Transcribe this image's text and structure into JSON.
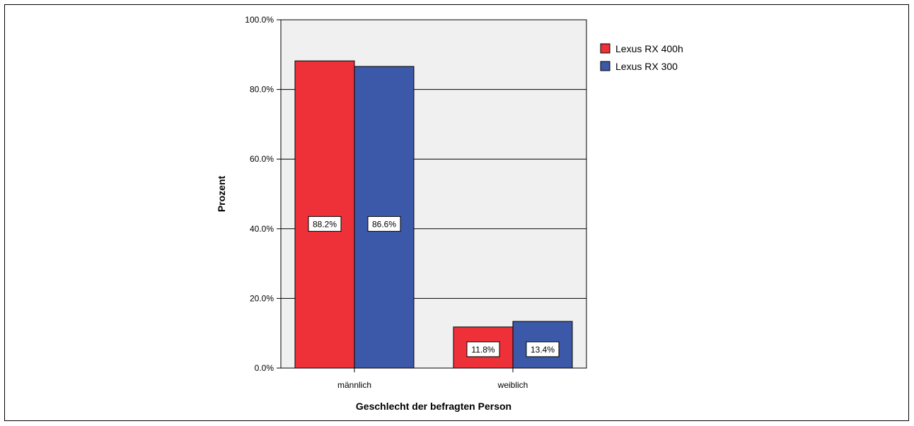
{
  "chart_data": {
    "type": "bar",
    "title": "",
    "xlabel": "Geschlecht der befragten Person",
    "ylabel": "Prozent",
    "categories": [
      "männlich",
      "weiblich"
    ],
    "series": [
      {
        "name": "Lexus RX 400h",
        "values": [
          88.2,
          11.8
        ],
        "labels": [
          "88.2%",
          "11.8%"
        ],
        "color": "#ee3039"
      },
      {
        "name": "Lexus RX 300",
        "values": [
          86.6,
          13.4
        ],
        "labels": [
          "86.6%",
          "13.4%"
        ],
        "color": "#3c58a8"
      }
    ],
    "ylim": [
      0,
      100
    ],
    "yticks": [
      "0.0%",
      "20.0%",
      "40.0%",
      "60.0%",
      "80.0%",
      "100.0%"
    ],
    "grid": true,
    "legend_position": "right",
    "plot_background": "#f0f0f0"
  }
}
